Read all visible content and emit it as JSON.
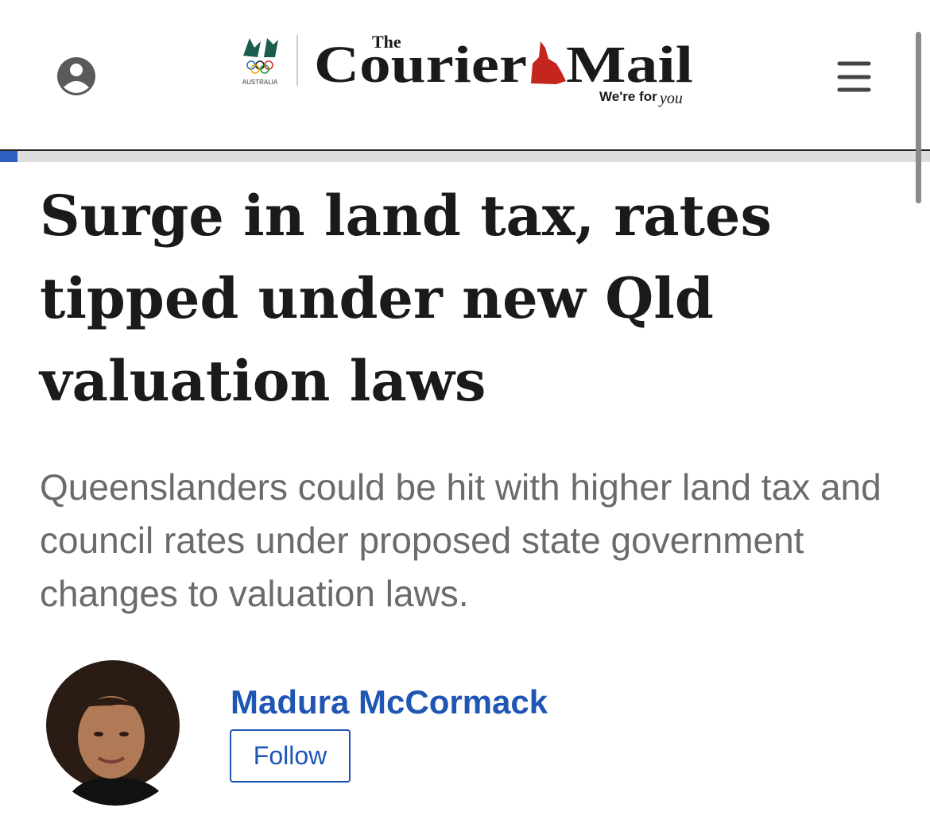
{
  "header": {
    "olympic_badge": "AUSTRALIA",
    "logo": {
      "the": "The",
      "courier": "Courier",
      "mail": "Mail",
      "tagline": "We're for",
      "tagline_script": "you"
    }
  },
  "article": {
    "headline": "Surge in land tax, rates tipped under new Qld valuation laws",
    "standfirst": "Queenslanders could be hit with higher land tax and council rates under proposed state government changes to valuation laws.",
    "author": {
      "name": "Madura McCormack",
      "follow": "Follow"
    }
  }
}
